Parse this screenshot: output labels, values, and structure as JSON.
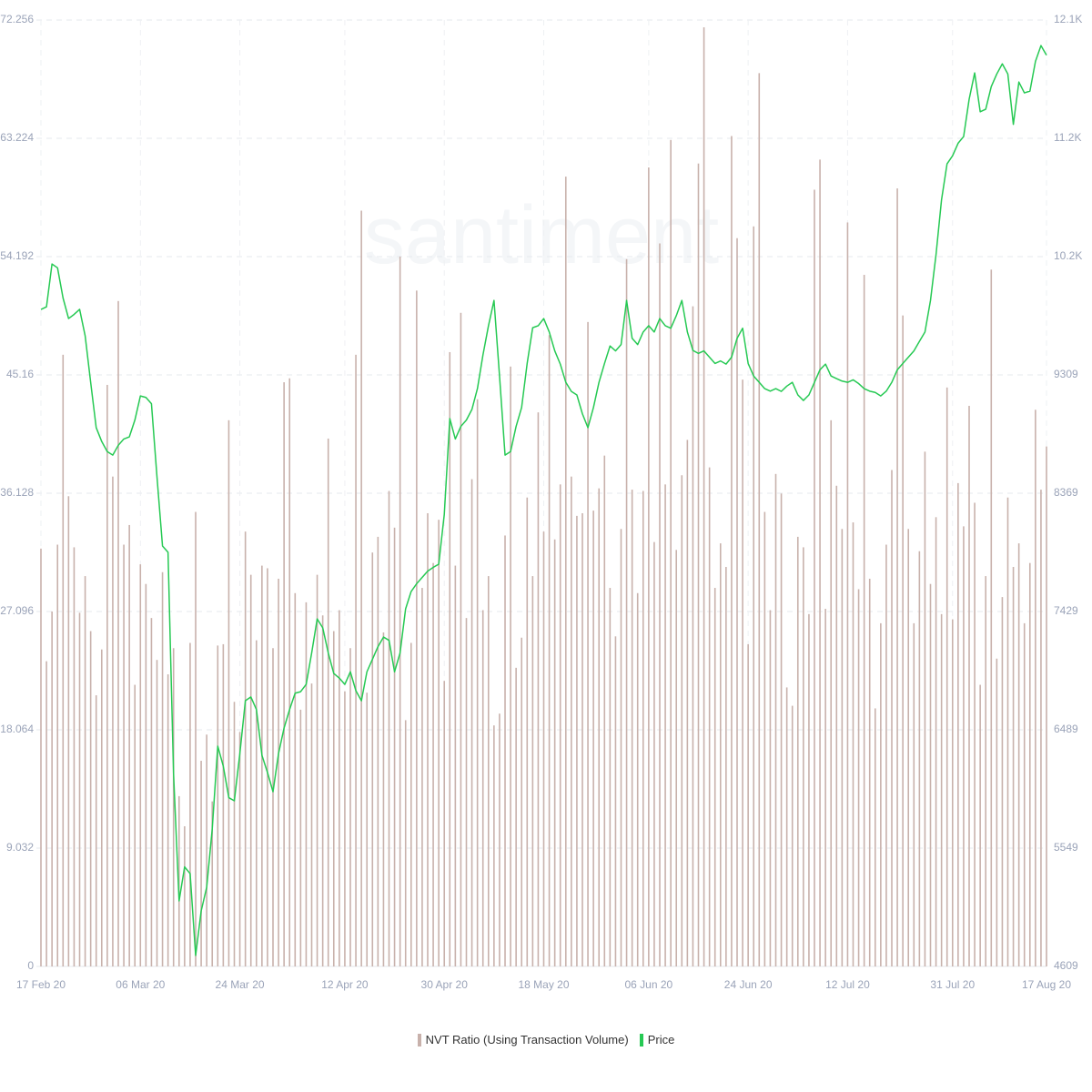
{
  "chart_data": {
    "type": "combo",
    "watermark": "santiment",
    "categories": [
      "17 Feb 20",
      null,
      null,
      null,
      null,
      null,
      null,
      null,
      null,
      null,
      null,
      null,
      null,
      null,
      null,
      null,
      null,
      null,
      "06 Mar 20",
      null,
      null,
      null,
      null,
      null,
      null,
      null,
      null,
      null,
      null,
      null,
      null,
      null,
      null,
      null,
      null,
      null,
      "24 Mar 20",
      null,
      null,
      null,
      null,
      null,
      null,
      null,
      null,
      null,
      null,
      null,
      null,
      null,
      null,
      null,
      null,
      null,
      null,
      "12 Apr 20",
      null,
      null,
      null,
      null,
      null,
      null,
      null,
      null,
      null,
      null,
      null,
      null,
      null,
      null,
      null,
      null,
      null,
      "30 Apr 20",
      null,
      null,
      null,
      null,
      null,
      null,
      null,
      null,
      null,
      null,
      null,
      null,
      null,
      null,
      null,
      null,
      null,
      "18 May 20",
      null,
      null,
      null,
      null,
      null,
      null,
      null,
      null,
      null,
      null,
      null,
      null,
      null,
      null,
      null,
      null,
      null,
      null,
      "06 Jun 20",
      null,
      null,
      null,
      null,
      null,
      null,
      null,
      null,
      null,
      null,
      null,
      null,
      null,
      null,
      null,
      null,
      null,
      "24 Jun 20",
      null,
      null,
      null,
      null,
      null,
      null,
      null,
      null,
      null,
      null,
      null,
      null,
      null,
      null,
      null,
      null,
      null,
      "12 Jul 20",
      null,
      null,
      null,
      null,
      null,
      null,
      null,
      null,
      null,
      null,
      null,
      null,
      null,
      null,
      null,
      null,
      null,
      null,
      "31 Jul 20",
      null,
      null,
      null,
      null,
      null,
      null,
      null,
      null,
      null,
      null,
      null,
      null,
      null,
      null,
      null,
      null,
      "17 Aug 20"
    ],
    "series": [
      {
        "name": "NVT Ratio (Using Transaction Volume)",
        "type": "bar",
        "axis": "y",
        "color": "#c8b1ab",
        "values": [
          31.9,
          23.3,
          27.1,
          32.2,
          46.7,
          35.9,
          32.0,
          27.0,
          29.8,
          25.6,
          20.7,
          24.2,
          44.4,
          37.4,
          50.8,
          32.2,
          33.7,
          21.5,
          30.7,
          29.2,
          26.6,
          23.4,
          30.1,
          22.3,
          24.3,
          13.0,
          10.7,
          24.7,
          34.7,
          15.7,
          17.7,
          12.6,
          24.5,
          24.6,
          41.7,
          20.2,
          17.9,
          33.2,
          29.9,
          24.9,
          30.6,
          30.4,
          24.3,
          29.6,
          44.6,
          44.9,
          28.5,
          19.6,
          27.8,
          21.6,
          29.9,
          26.8,
          40.3,
          25.6,
          27.2,
          21.0,
          24.3,
          46.7,
          57.7,
          20.9,
          31.6,
          32.8,
          25.5,
          36.3,
          33.5,
          54.2,
          18.8,
          24.7,
          51.6,
          28.9,
          34.6,
          30.8,
          34.1,
          21.8,
          46.9,
          30.6,
          49.9,
          26.6,
          37.2,
          43.3,
          27.2,
          29.8,
          18.4,
          19.3,
          32.9,
          45.8,
          22.8,
          25.1,
          35.8,
          29.8,
          42.3,
          33.2,
          48.2,
          32.6,
          36.8,
          60.3,
          37.4,
          34.4,
          34.6,
          49.2,
          34.8,
          36.5,
          39.0,
          28.9,
          25.2,
          33.4,
          54.0,
          36.4,
          28.5,
          36.3,
          61.0,
          32.4,
          55.2,
          36.8,
          63.1,
          31.8,
          37.5,
          40.2,
          50.4,
          61.3,
          71.7,
          38.1,
          28.9,
          32.3,
          30.5,
          63.4,
          55.6,
          44.8,
          24.6,
          56.5,
          68.2,
          34.7,
          27.2,
          37.6,
          36.1,
          21.3,
          19.9,
          32.8,
          32.0,
          26.9,
          59.3,
          61.6,
          27.3,
          41.7,
          36.7,
          33.4,
          56.8,
          33.9,
          28.8,
          52.8,
          29.6,
          19.7,
          26.2,
          32.2,
          37.9,
          59.4,
          49.7,
          33.4,
          26.2,
          31.7,
          39.3,
          29.2,
          34.3,
          26.9,
          44.2,
          26.5,
          36.9,
          33.6,
          42.8,
          35.4,
          21.5,
          29.8,
          53.2,
          23.5,
          28.2,
          35.8,
          30.5,
          32.3,
          26.2,
          30.8,
          42.5,
          36.4,
          39.7
        ]
      },
      {
        "name": "Price",
        "type": "line",
        "axis": "y2",
        "color": "#26c953",
        "values": [
          9829,
          9850,
          10190,
          10160,
          9920,
          9757,
          9790,
          9830,
          9620,
          9250,
          8890,
          8780,
          8700,
          8672,
          8750,
          8800,
          8817,
          8950,
          9142,
          9130,
          9080,
          8500,
          7950,
          7900,
          6142,
          5130,
          5400,
          5346,
          4696,
          5050,
          5238,
          5700,
          6359,
          6200,
          5950,
          5925,
          6300,
          6720,
          6750,
          6650,
          6286,
          6150,
          5997,
          6300,
          6503,
          6650,
          6780,
          6792,
          6850,
          7100,
          7370,
          7300,
          7100,
          6937,
          6900,
          6850,
          6950,
          6800,
          6720,
          6950,
          7050,
          7150,
          7226,
          7200,
          6950,
          7100,
          7450,
          7588,
          7650,
          7700,
          7750,
          7780,
          7805,
          8200,
          8962,
          8800,
          8900,
          8950,
          9034,
          9200,
          9467,
          9700,
          9901,
          9300,
          8672,
          8700,
          8900,
          9050,
          9400,
          9684,
          9700,
          9757,
          9650,
          9500,
          9395,
          9250,
          9178,
          9150,
          9000,
          8890,
          9050,
          9250,
          9400,
          9539,
          9500,
          9550,
          9901,
          9600,
          9550,
          9650,
          9700,
          9650,
          9757,
          9700,
          9680,
          9780,
          9901,
          9650,
          9504,
          9480,
          9500,
          9450,
          9400,
          9420,
          9395,
          9450,
          9600,
          9680,
          9400,
          9300,
          9250,
          9200,
          9180,
          9200,
          9178,
          9220,
          9250,
          9150,
          9106,
          9150,
          9250,
          9350,
          9395,
          9300,
          9280,
          9260,
          9250,
          9270,
          9240,
          9200,
          9180,
          9170,
          9142,
          9180,
          9250,
          9350,
          9400,
          9450,
          9500,
          9576,
          9650,
          9900,
          10263,
          10700,
          10986,
          11050,
          11150,
          11203,
          11500,
          11709,
          11400,
          11420,
          11600,
          11700,
          11781,
          11700,
          11300,
          11636,
          11550,
          11564,
          11800,
          11926,
          11850
        ]
      }
    ],
    "ylim": [
      0,
      72.256
    ],
    "yticks": [
      0,
      9.032,
      18.064,
      27.096,
      36.128,
      45.16,
      54.192,
      63.224,
      72.256
    ],
    "y2lim": [
      4609,
      12129
    ],
    "y2ticks": [
      4609,
      5549,
      6489,
      7429,
      8369,
      9309,
      {
        "value": 10249,
        "label": "10.2K"
      },
      {
        "value": 11189,
        "label": "11.2K"
      },
      {
        "value": 12129,
        "label": "12.1K"
      }
    ],
    "grid": true
  }
}
